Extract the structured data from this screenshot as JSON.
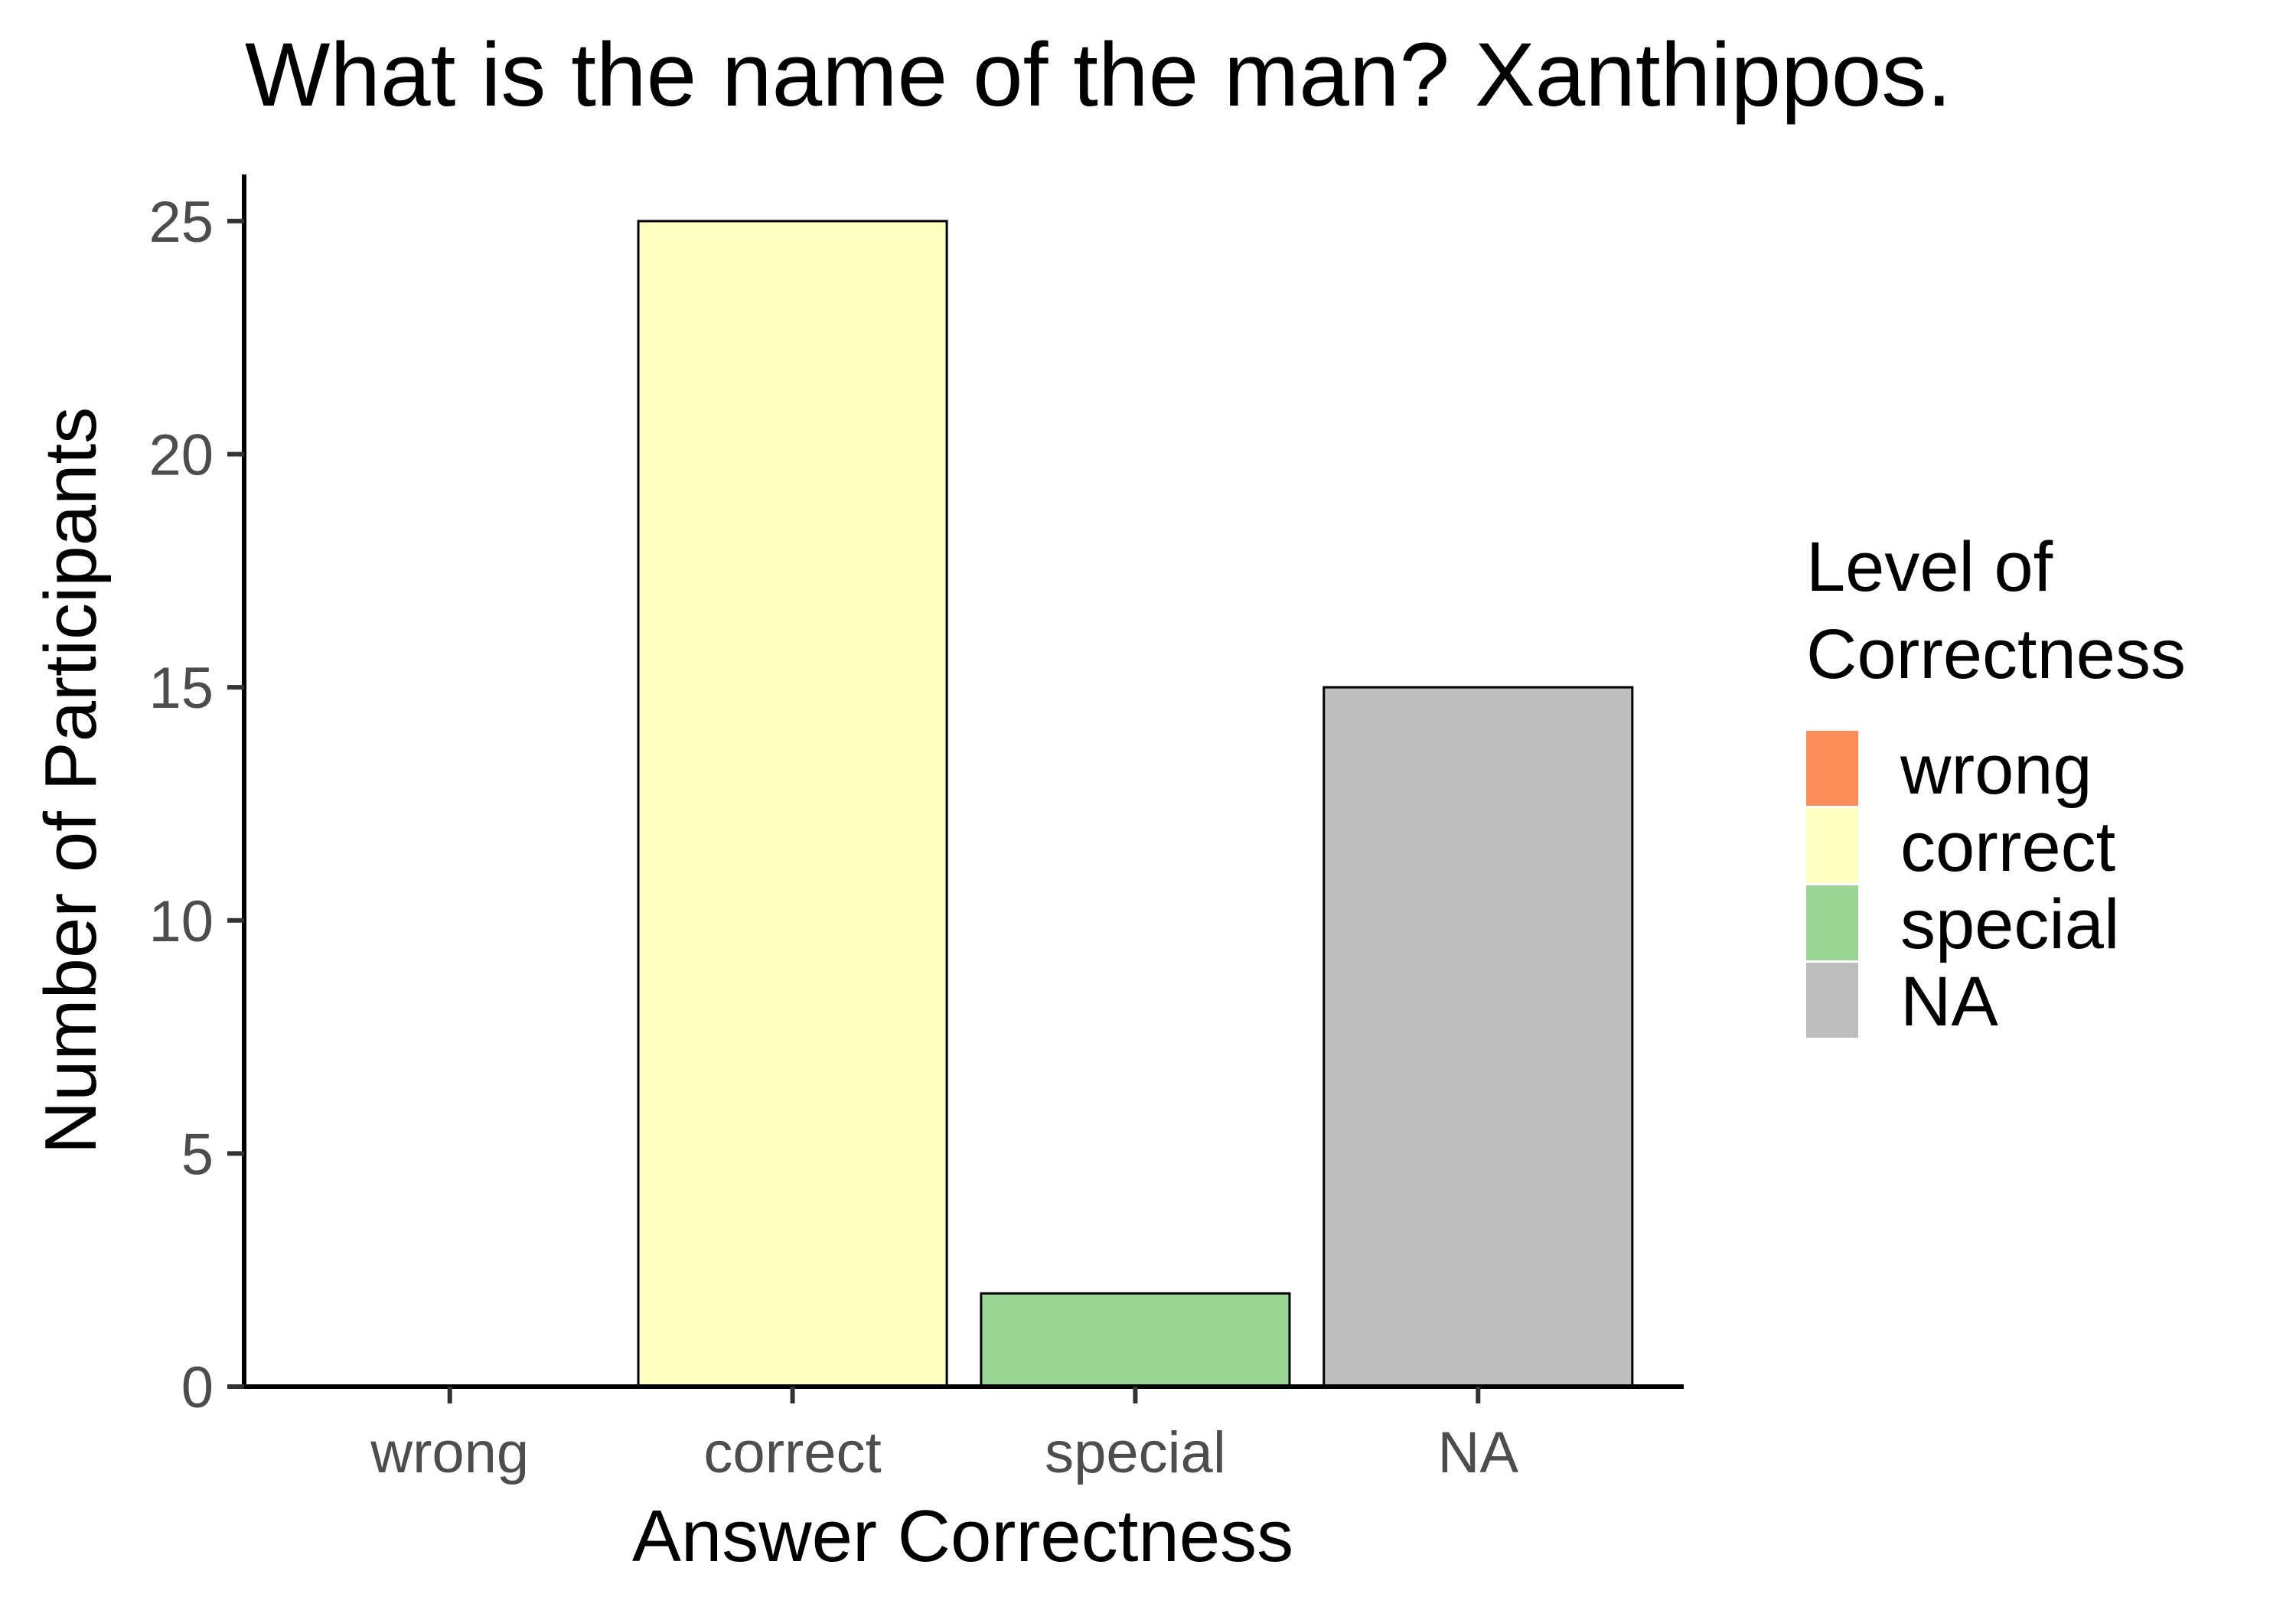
{
  "chart_data": {
    "type": "bar",
    "title": "What is the name of the man? Xanthippos.",
    "xlabel": "Answer Correctness",
    "ylabel": "Number of Participants",
    "categories": [
      "wrong",
      "correct",
      "special",
      "NA"
    ],
    "values": [
      0,
      25,
      2,
      15
    ],
    "colors": [
      "#fc8d59",
      "#ffffbf",
      "#99d594",
      "#bebebe"
    ],
    "ylim": [
      0,
      26
    ],
    "yticks": [
      0,
      5,
      10,
      15,
      20,
      25
    ],
    "grid": false,
    "legend": {
      "title_lines": [
        "Level of",
        "Correctness"
      ],
      "placement": "right",
      "items": [
        {
          "label": "wrong",
          "color": "#fc8d59"
        },
        {
          "label": "correct",
          "color": "#ffffbf"
        },
        {
          "label": "special",
          "color": "#99d594"
        },
        {
          "label": "NA",
          "color": "#bebebe"
        }
      ]
    }
  }
}
